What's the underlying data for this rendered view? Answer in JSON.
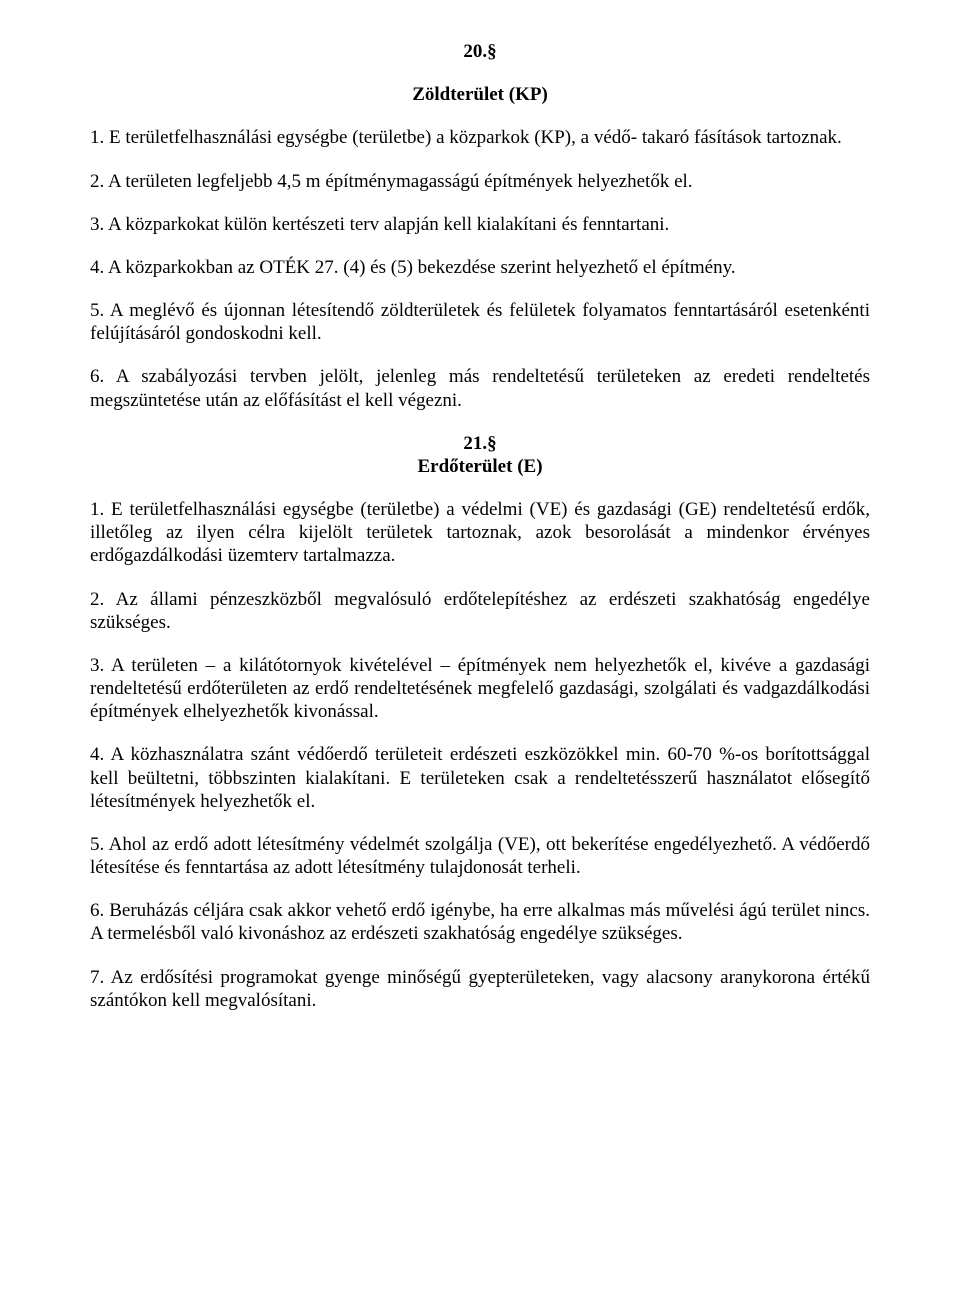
{
  "sec20": {
    "number": "20.§",
    "title": "Zöldterület (KP)",
    "p1": "1. E területfelhasználási egységbe (területbe) a közparkok (KP), a védő- takaró fásítások tartoznak.",
    "p2": "2. A területen legfeljebb 4,5 m építménymagasságú építmények helyezhetők el.",
    "p3": "3. A közparkokat külön kertészeti terv alapján kell kialakítani és fenntartani.",
    "p4": "4. A közparkokban az OTÉK 27. (4) és (5) bekezdése szerint helyezhető el építmény.",
    "p5": "5. A meglévő és újonnan létesítendő zöldterületek és felületek folyamatos fenntartásáról esetenkénti felújításáról gondoskodni kell.",
    "p6": "6. A szabályozási tervben jelölt, jelenleg más rendeltetésű területeken az eredeti rendeltetés megszüntetése után az előfásítást el kell végezni."
  },
  "sec21": {
    "number": "21.§",
    "title": "Erdőterület (E)",
    "p1": "1. E területfelhasználási egységbe (területbe) a védelmi (VE) és gazdasági (GE) rendeltetésű erdők, illetőleg az ilyen célra kijelölt területek tartoznak, azok besorolását a mindenkor érvényes erdőgazdálkodási üzemterv tartalmazza.",
    "p2": "2. Az állami pénzeszközből megvalósuló erdőtelepítéshez az erdészeti szakhatóság engedélye szükséges.",
    "p3": "3. A területen – a kilátótornyok kivételével – építmények nem helyezhetők el, kivéve a gazdasági rendeltetésű erdőterületen az erdő rendeltetésének megfelelő gazdasági, szolgálati és vadgazdálkodási építmények elhelyezhetők kivonással.",
    "p4": "4. A közhasználatra szánt védőerdő területeit erdészeti eszközökkel min. 60-70 %-os borítottsággal kell beültetni, többszinten kialakítani. E területeken csak a rendeltetésszerű használatot elősegítő létesítmények helyezhetők el.",
    "p5": "5. Ahol az erdő adott létesítmény védelmét szolgálja (VE), ott bekerítése engedélyezhető. A védőerdő létesítése és fenntartása az adott létesítmény tulajdonosát terheli.",
    "p6": "6. Beruházás céljára csak akkor vehető erdő igénybe, ha erre alkalmas más művelési ágú terület nincs. A termelésből való kivonáshoz az erdészeti szakhatóság engedélye szükséges.",
    "p7": "7. Az erdősítési programokat gyenge minőségű gyepterületeken, vagy alacsony aranykorona értékű szántókon kell megvalósítani."
  }
}
